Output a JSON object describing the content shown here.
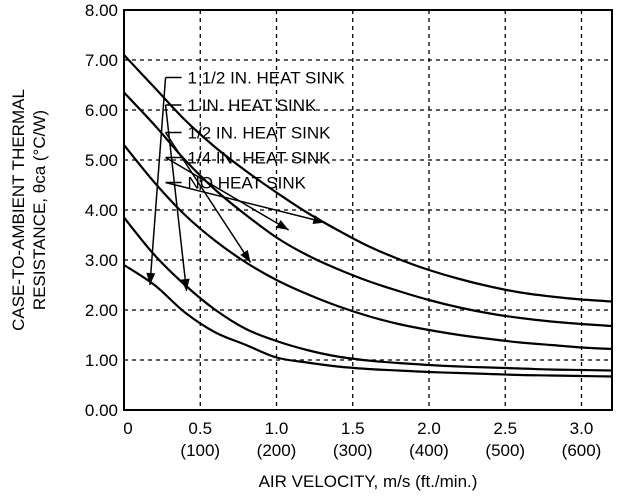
{
  "chart_data": {
    "type": "line",
    "xlabel": "AIR VELOCITY, m/s (ft./min.)",
    "ylabel_line1": "CASE-TO-AMBIENT THERMAL",
    "ylabel_line2": "RESISTANCE, θca (°C/W)",
    "xlim": [
      0,
      3.2
    ],
    "ylim": [
      0,
      8
    ],
    "grid": true,
    "grid_style": "dashed",
    "y_ticks": [
      {
        "value": 0,
        "label": "0.00"
      },
      {
        "value": 1,
        "label": "1.00"
      },
      {
        "value": 2,
        "label": "2.00"
      },
      {
        "value": 3,
        "label": "3.00"
      },
      {
        "value": 4,
        "label": "4.00"
      },
      {
        "value": 5,
        "label": "5.00"
      },
      {
        "value": 6,
        "label": "6.00"
      },
      {
        "value": 7,
        "label": "7.00"
      },
      {
        "value": 8,
        "label": "8.00"
      }
    ],
    "x_ticks": [
      {
        "value": 0,
        "label": "0",
        "sub": ""
      },
      {
        "value": 0.5,
        "label": "0.5",
        "sub": "(100)"
      },
      {
        "value": 1.0,
        "label": "1.0",
        "sub": "(200)"
      },
      {
        "value": 1.5,
        "label": "1.5",
        "sub": "(300)"
      },
      {
        "value": 2.0,
        "label": "2.0",
        "sub": "(400)"
      },
      {
        "value": 2.5,
        "label": "2.5",
        "sub": "(500)"
      },
      {
        "value": 3.0,
        "label": "3.0",
        "sub": "(600)"
      }
    ],
    "series": [
      {
        "name": "1 1/2 IN. HEAT SINK",
        "x": [
          0,
          0.2,
          0.4,
          0.6,
          0.8,
          1.0,
          1.2,
          1.4,
          1.6,
          1.8,
          2.0,
          2.2,
          2.4,
          2.6,
          2.8,
          3.0,
          3.2
        ],
        "y": [
          2.9,
          2.5,
          1.95,
          1.55,
          1.3,
          1.05,
          0.95,
          0.87,
          0.82,
          0.79,
          0.76,
          0.74,
          0.72,
          0.7,
          0.69,
          0.68,
          0.67
        ],
        "label_at": [
          0.22,
          6.65
        ],
        "arrow_to": [
          0.17,
          2.5
        ]
      },
      {
        "name": "1 IN. HEAT SINK",
        "x": [
          0,
          0.2,
          0.4,
          0.6,
          0.8,
          1.0,
          1.2,
          1.4,
          1.6,
          1.8,
          2.0,
          2.2,
          2.4,
          2.6,
          2.8,
          3.0,
          3.2
        ],
        "y": [
          3.85,
          3.1,
          2.5,
          2.0,
          1.62,
          1.38,
          1.2,
          1.07,
          0.99,
          0.94,
          0.9,
          0.87,
          0.85,
          0.83,
          0.81,
          0.8,
          0.79
        ],
        "label_at": [
          0.22,
          6.1
        ],
        "arrow_to": [
          0.41,
          2.38
        ]
      },
      {
        "name": "1/2 IN. HEAT SINK",
        "x": [
          0,
          0.2,
          0.4,
          0.6,
          0.8,
          1.0,
          1.2,
          1.4,
          1.6,
          1.8,
          2.0,
          2.2,
          2.4,
          2.6,
          2.8,
          3.0,
          3.2
        ],
        "y": [
          5.3,
          4.55,
          3.9,
          3.38,
          2.95,
          2.6,
          2.32,
          2.08,
          1.88,
          1.72,
          1.6,
          1.5,
          1.42,
          1.35,
          1.3,
          1.25,
          1.22
        ],
        "label_at": [
          0.22,
          5.55
        ],
        "arrow_to": [
          0.83,
          2.95
        ]
      },
      {
        "name": "1/4 IN. HEAT SINK",
        "x": [
          0,
          0.2,
          0.4,
          0.6,
          0.8,
          1.0,
          1.2,
          1.4,
          1.6,
          1.8,
          2.0,
          2.2,
          2.4,
          2.6,
          2.8,
          3.0,
          3.2
        ],
        "y": [
          6.35,
          5.7,
          5.0,
          4.4,
          3.9,
          3.45,
          3.1,
          2.82,
          2.58,
          2.38,
          2.2,
          2.05,
          1.93,
          1.84,
          1.77,
          1.72,
          1.68
        ],
        "label_at": [
          0.22,
          5.05
        ],
        "arrow_to": [
          1.08,
          3.6
        ]
      },
      {
        "name": "NO HEAT SINK",
        "x": [
          0,
          0.2,
          0.4,
          0.6,
          0.8,
          1.0,
          1.2,
          1.4,
          1.6,
          1.8,
          2.0,
          2.2,
          2.4,
          2.6,
          2.8,
          3.0,
          3.2
        ],
        "y": [
          7.1,
          6.45,
          5.8,
          5.25,
          4.78,
          4.35,
          3.95,
          3.6,
          3.28,
          3.02,
          2.8,
          2.62,
          2.47,
          2.35,
          2.27,
          2.21,
          2.17
        ],
        "label_at": [
          0.22,
          4.55
        ],
        "arrow_to": [
          1.32,
          3.75
        ]
      }
    ]
  }
}
